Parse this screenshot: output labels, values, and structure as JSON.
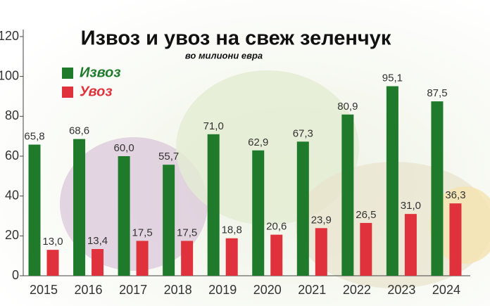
{
  "chart_data": {
    "type": "bar",
    "title": "Извоз и увоз на свеж зеленчук",
    "subtitle": "во милиони евра",
    "categories": [
      "2015",
      "2016",
      "2017",
      "2018",
      "2019",
      "2020",
      "2021",
      "2022",
      "2023",
      "2024"
    ],
    "series": [
      {
        "name": "Извоз",
        "color": "#1f7a2b",
        "values": [
          65.8,
          68.6,
          60.0,
          55.7,
          71.0,
          62.9,
          67.3,
          80.9,
          95.1,
          87.5
        ],
        "value_labels": [
          "65,8",
          "68,6",
          "60,0",
          "55,7",
          "71,0",
          "62,9",
          "67,3",
          "80,9",
          "95,1",
          "87,5"
        ]
      },
      {
        "name": "Увоз",
        "color": "#e0323c",
        "values": [
          13.0,
          13.4,
          17.5,
          17.5,
          18.8,
          20.6,
          23.9,
          26.5,
          31.0,
          36.3
        ],
        "value_labels": [
          "13,0",
          "13,4",
          "17,5",
          "17,5",
          "18,8",
          "20,6",
          "23,9",
          "26,5",
          "31,0",
          "36,3"
        ]
      }
    ],
    "ylim": [
      0,
      120
    ],
    "yticks": [
      0,
      20,
      40,
      60,
      80,
      100,
      120
    ]
  }
}
